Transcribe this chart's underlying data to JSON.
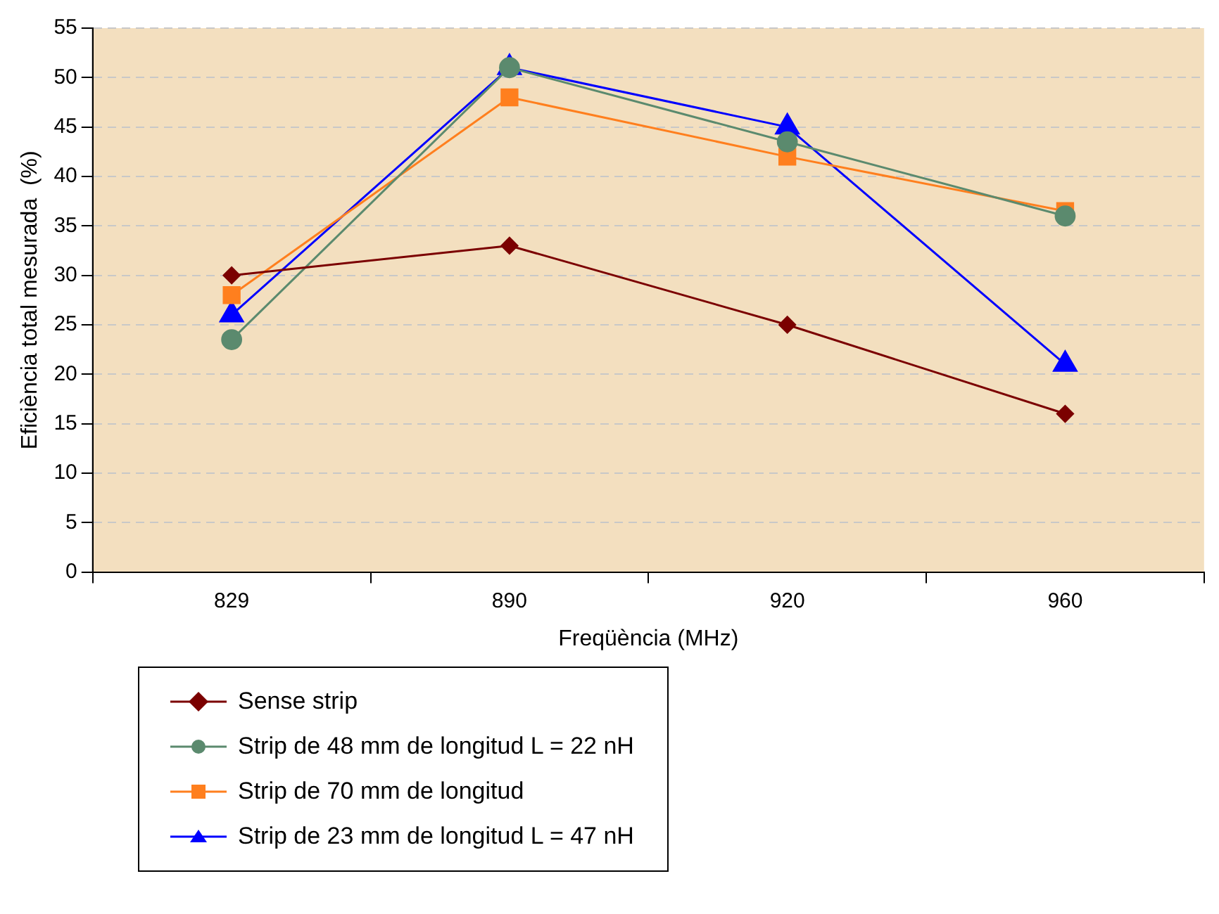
{
  "chart_data": {
    "type": "line",
    "xlabel": "Freqüència (MHz)",
    "ylabel": "Eficiència total mesurada  (%)",
    "categories": [
      "829",
      "890",
      "920",
      "960"
    ],
    "series": [
      {
        "name": "Sense strip",
        "color": "#7b0000",
        "marker": "diamond",
        "values": [
          30,
          33,
          25,
          16
        ]
      },
      {
        "name": "Strip de 48 mm de longitud L = 22 nH",
        "color": "#5b8a6e",
        "marker": "circle",
        "values": [
          23.5,
          51,
          43.5,
          36
        ]
      },
      {
        "name": "Strip de 70 mm de longitud",
        "color": "#ff7f1e",
        "marker": "square",
        "values": [
          28,
          48,
          42,
          36.5
        ]
      },
      {
        "name": "Strip de 23 mm de longitud L = 47 nH",
        "color": "#0000ff",
        "marker": "triangle",
        "values": [
          26,
          51,
          45,
          21
        ]
      }
    ],
    "ylim": [
      0,
      55
    ],
    "yticks": [
      0,
      5,
      10,
      15,
      20,
      25,
      30,
      35,
      40,
      45,
      50,
      55
    ],
    "grid": "y",
    "legend": "bottom left",
    "line_style": "solid"
  }
}
